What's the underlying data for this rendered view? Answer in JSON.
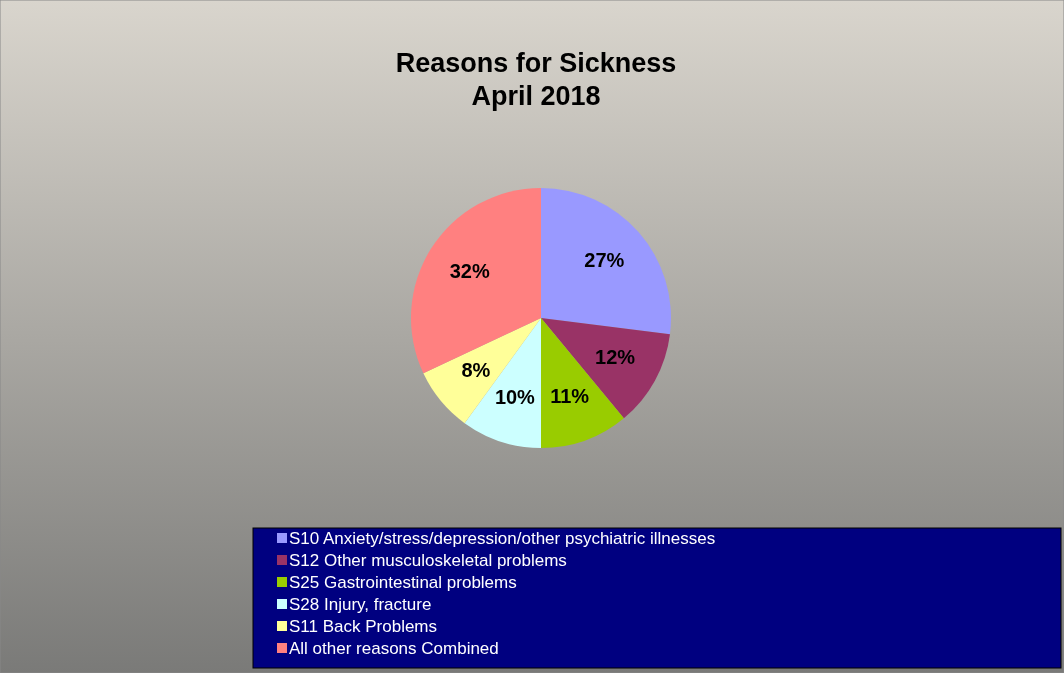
{
  "chart_data": {
    "type": "pie",
    "title": "Reasons for Sickness\nApril 2018",
    "categories": [
      "S10 Anxiety/stress/depression/other psychiatric illnesses",
      "S12 Other musculoskeletal problems",
      "S25 Gastrointestinal problems",
      "S28 Injury, fracture",
      "S11 Back Problems",
      "All other reasons Combined"
    ],
    "values": [
      27,
      12,
      11,
      10,
      8,
      32
    ],
    "value_labels": [
      "27%",
      "12%",
      "11%",
      "10%",
      "8%",
      "32%"
    ],
    "colors": [
      "#9999ff",
      "#993366",
      "#99cc00",
      "#ccffff",
      "#ffff99",
      "#ff8080"
    ],
    "legend": "bottom"
  }
}
